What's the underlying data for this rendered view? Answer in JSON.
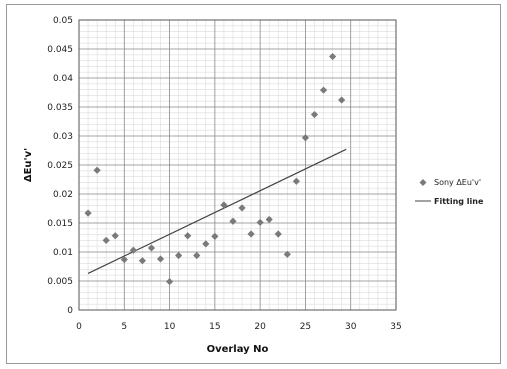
{
  "chart_data": {
    "type": "scatter",
    "title": "",
    "xlabel": "Overlay No",
    "ylabel": "ΔEu'v'",
    "xlim": [
      0,
      35
    ],
    "ylim": [
      0,
      0.05
    ],
    "xticks": [
      "0",
      "5",
      "10",
      "15",
      "20",
      "25",
      "30",
      "35"
    ],
    "yticks": [
      "0",
      "0.005",
      "0.01",
      "0.015",
      "0.02",
      "0.025",
      "0.03",
      "0.035",
      "0.04",
      "0.045",
      "0.05"
    ],
    "grid": true,
    "legend_position": "right",
    "series": [
      {
        "name": "Sony ΔEu'v'",
        "marker": "diamond",
        "color": "#7a7a7a",
        "points": [
          [
            1,
            0.0167
          ],
          [
            2,
            0.0241
          ],
          [
            3,
            0.012
          ],
          [
            4,
            0.0128
          ],
          [
            5,
            0.0087
          ],
          [
            6,
            0.0103
          ],
          [
            7,
            0.0085
          ],
          [
            8,
            0.0107
          ],
          [
            9,
            0.0088
          ],
          [
            10,
            0.0049
          ],
          [
            11,
            0.0094
          ],
          [
            12,
            0.0128
          ],
          [
            13,
            0.0094
          ],
          [
            14,
            0.0114
          ],
          [
            15,
            0.0127
          ],
          [
            16,
            0.0181
          ],
          [
            17,
            0.0153
          ],
          [
            18,
            0.0176
          ],
          [
            19,
            0.0131
          ],
          [
            20,
            0.0151
          ],
          [
            21,
            0.0156
          ],
          [
            22,
            0.0131
          ],
          [
            23,
            0.0096
          ],
          [
            24,
            0.0222
          ],
          [
            25,
            0.0297
          ],
          [
            26,
            0.0337
          ],
          [
            27,
            0.0379
          ],
          [
            28,
            0.0437
          ],
          [
            29,
            0.0362
          ]
        ]
      },
      {
        "name": "Fitting line",
        "type": "line",
        "color": "#444444",
        "points": [
          [
            1,
            0.0063
          ],
          [
            29.5,
            0.0277
          ]
        ]
      }
    ]
  }
}
